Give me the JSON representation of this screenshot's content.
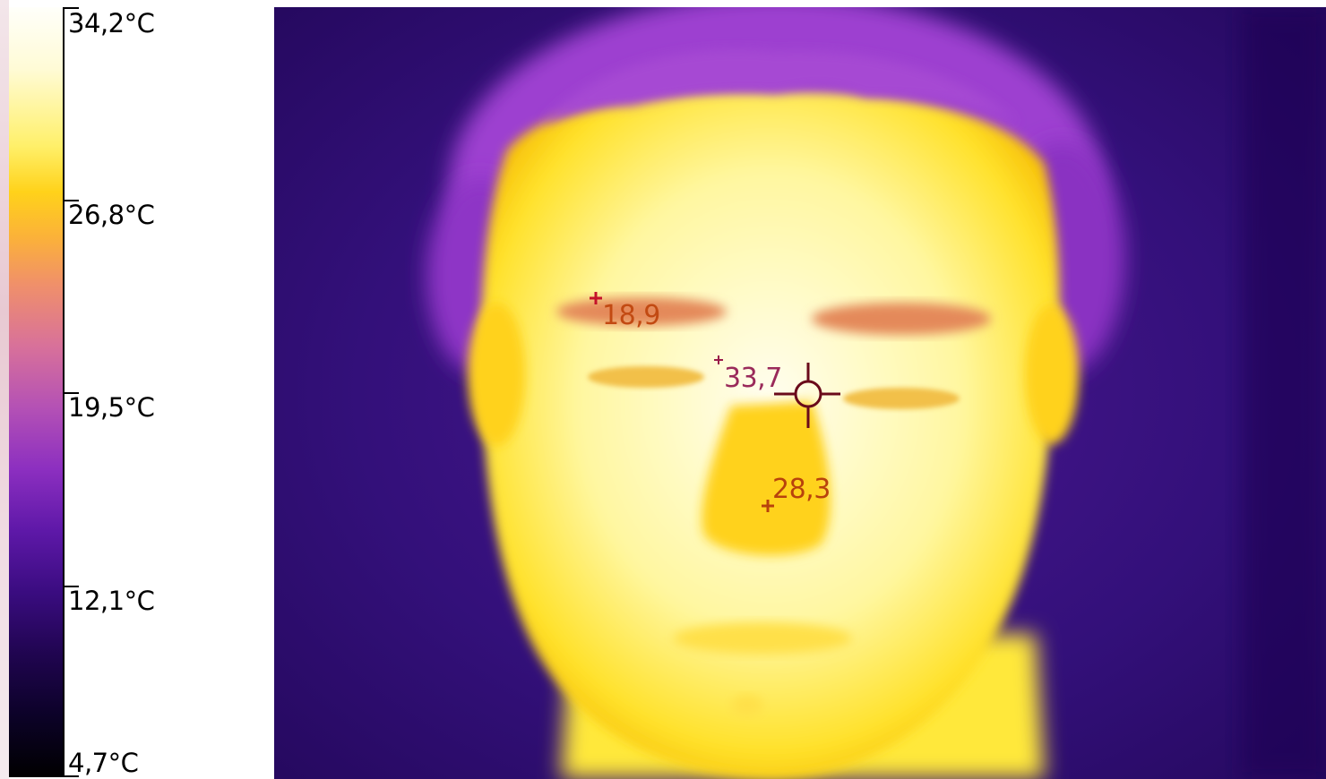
{
  "scale": {
    "max_label": "34,2°C",
    "tick_2_label": "26,8°C",
    "tick_3_label": "19,5°C",
    "tick_4_label": "12,1°C",
    "min_label": "4,7°C",
    "palette": "iron",
    "colors": {
      "hot": "#fffffa",
      "warm": "#ffd21a",
      "mid": "#b451b5",
      "cool": "#3a0c80",
      "cold": "#000000"
    }
  },
  "measurements": {
    "spot1": {
      "value": "18,9",
      "marker_color": "#c4122a"
    },
    "spot2": {
      "value": "33,7",
      "marker_color": "#9a1a4a"
    },
    "spot3": {
      "value": "28,3",
      "marker_color": "#b8420c"
    }
  },
  "crosshair": {
    "icon": "crosshair-icon",
    "color": "#6a0a1a"
  }
}
